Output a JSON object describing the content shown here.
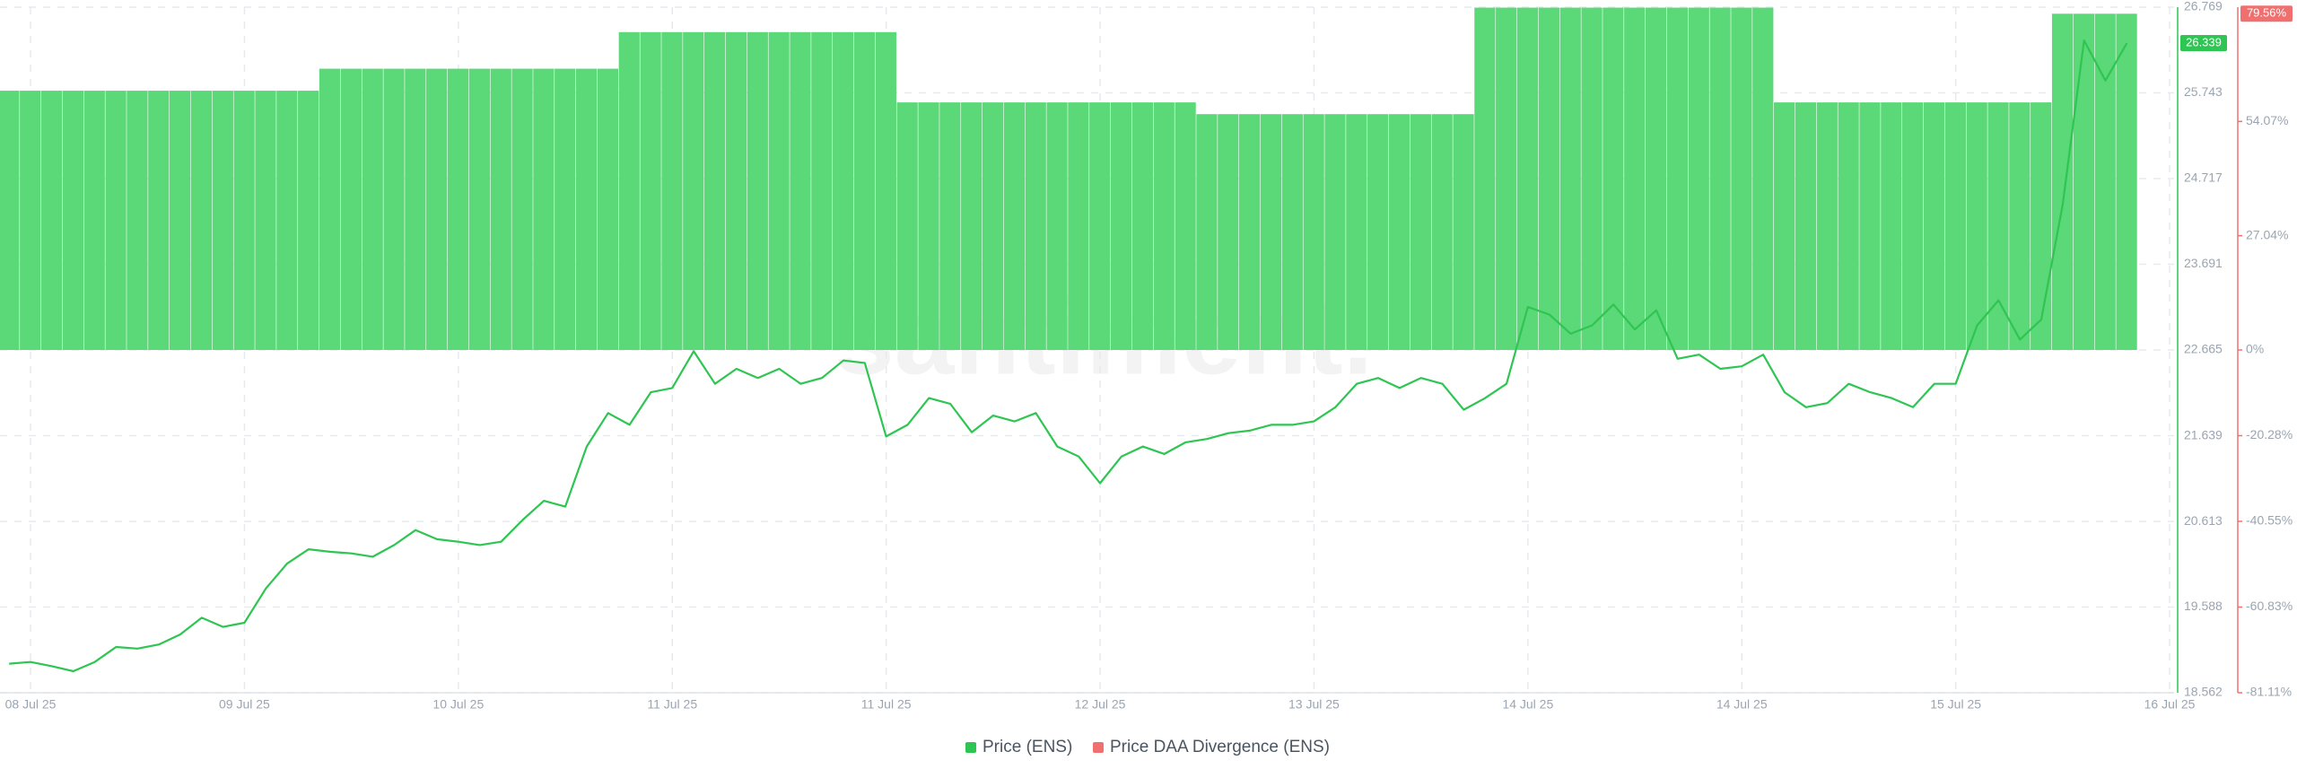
{
  "chart_data": {
    "type": "line",
    "watermark": "santiment.",
    "categories": [
      null,
      "08 Jul 25",
      null,
      null,
      null,
      null,
      null,
      null,
      null,
      null,
      null,
      "09 Jul 25",
      null,
      null,
      null,
      null,
      null,
      null,
      null,
      null,
      null,
      "10 Jul 25",
      null,
      null,
      null,
      null,
      null,
      null,
      null,
      null,
      null,
      "11 Jul 25",
      null,
      null,
      null,
      null,
      null,
      null,
      null,
      null,
      null,
      "11 Jul 25",
      null,
      null,
      null,
      null,
      null,
      null,
      null,
      null,
      null,
      "12 Jul 25",
      null,
      null,
      null,
      null,
      null,
      null,
      null,
      null,
      null,
      "13 Jul 25",
      null,
      null,
      null,
      null,
      null,
      null,
      null,
      null,
      null,
      "14 Jul 25",
      null,
      null,
      null,
      null,
      null,
      null,
      null,
      null,
      null,
      "14 Jul 25",
      null,
      null,
      null,
      null,
      null,
      null,
      null,
      null,
      null,
      "15 Jul 25",
      null,
      null,
      null,
      null,
      null,
      null,
      null,
      null,
      null,
      "16 Jul 25"
    ],
    "series": [
      {
        "name": "Price (ENS)",
        "color": "#2fc552",
        "type": "line",
        "axis": "y",
        "values": [
          18.91,
          18.93,
          18.88,
          18.82,
          18.93,
          19.11,
          19.09,
          19.14,
          19.26,
          19.46,
          19.35,
          19.4,
          19.81,
          20.11,
          20.28,
          20.25,
          20.23,
          20.19,
          20.33,
          20.51,
          20.4,
          20.37,
          20.33,
          20.37,
          20.63,
          20.86,
          20.79,
          21.51,
          21.91,
          21.77,
          22.16,
          22.21,
          22.65,
          22.26,
          22.44,
          22.33,
          22.44,
          22.26,
          22.33,
          22.54,
          22.51,
          21.63,
          21.77,
          22.09,
          22.02,
          21.68,
          21.88,
          21.81,
          21.91,
          21.51,
          21.39,
          21.07,
          21.39,
          21.51,
          21.42,
          21.56,
          21.6,
          21.67,
          21.7,
          21.77,
          21.77,
          21.81,
          21.98,
          22.26,
          22.33,
          22.21,
          22.33,
          22.26,
          21.95,
          22.09,
          22.26,
          23.18,
          23.09,
          22.86,
          22.96,
          23.21,
          22.91,
          23.14,
          22.56,
          22.61,
          22.44,
          22.47,
          22.61,
          22.16,
          21.98,
          22.03,
          22.26,
          22.16,
          22.09,
          21.98,
          22.26,
          22.26,
          22.96,
          23.26,
          22.79,
          23.03,
          24.4,
          26.37,
          25.89,
          26.339,
          null,
          null
        ]
      },
      {
        "name": "Price DAA Divergence (ENS)",
        "color": "#f07070",
        "bar_color": "#5bd877",
        "type": "bar",
        "axis": "y2",
        "values": [
          61.35,
          61.35,
          61.35,
          61.35,
          61.35,
          61.35,
          61.35,
          61.35,
          61.35,
          61.35,
          61.35,
          61.35,
          61.35,
          61.35,
          61.35,
          66.55,
          66.55,
          66.55,
          66.55,
          66.55,
          66.55,
          66.55,
          66.55,
          66.55,
          66.55,
          66.55,
          66.55,
          66.55,
          66.55,
          75.21,
          75.21,
          75.21,
          75.21,
          75.21,
          75.21,
          75.21,
          75.21,
          75.21,
          75.21,
          75.21,
          75.21,
          75.21,
          58.58,
          58.58,
          58.58,
          58.58,
          58.58,
          58.58,
          58.58,
          58.58,
          58.58,
          58.58,
          58.58,
          58.58,
          58.58,
          58.58,
          55.8,
          55.8,
          55.8,
          55.8,
          55.8,
          55.8,
          55.8,
          55.8,
          55.8,
          55.8,
          55.8,
          55.8,
          55.8,
          81.0,
          81.0,
          81.0,
          81.0,
          81.0,
          81.0,
          81.0,
          81.0,
          81.0,
          81.0,
          81.0,
          81.0,
          81.0,
          81.0,
          58.58,
          58.58,
          58.58,
          58.58,
          58.58,
          58.58,
          58.58,
          58.58,
          58.58,
          58.58,
          58.58,
          58.58,
          58.58,
          79.56,
          79.56,
          79.56,
          79.56,
          null,
          null
        ],
        "value_labels": [
          null,
          null,
          null,
          null,
          null,
          null,
          null,
          null,
          null,
          null,
          null,
          null,
          null,
          null,
          null,
          null,
          null,
          null,
          null,
          null,
          null,
          null,
          null,
          null,
          null,
          null,
          null,
          null,
          null,
          null,
          null,
          null,
          null,
          null,
          null,
          null,
          null,
          null,
          null,
          null,
          null,
          null,
          null,
          null,
          null,
          null,
          null,
          null,
          null,
          null,
          null,
          null,
          null,
          null,
          null,
          null,
          null,
          null,
          null,
          null,
          null,
          null,
          null,
          null,
          null,
          null,
          null,
          null,
          null,
          null,
          null,
          null,
          null,
          null,
          null,
          null,
          null,
          null,
          null,
          null,
          null,
          null,
          null,
          null,
          null,
          null,
          null,
          null,
          null,
          null,
          null,
          null,
          null,
          null,
          null,
          null,
          null,
          null,
          null,
          "79.56%",
          null,
          null
        ]
      }
    ],
    "ylim": [
      18.562,
      26.769
    ],
    "yticks": [
      18.562,
      19.588,
      20.613,
      21.639,
      22.665,
      23.691,
      24.717,
      25.743,
      26.769
    ],
    "y2lim": [
      -81.11,
      81.11
    ],
    "y2ticks": [
      {
        "value": -81.11,
        "label": "-81.11%"
      },
      {
        "value": -60.83,
        "label": "-60.83%"
      },
      {
        "value": -40.55,
        "label": "-40.55%"
      },
      {
        "value": -20.28,
        "label": "-20.28%"
      },
      {
        "value": 0,
        "label": "0%"
      },
      {
        "value": 27.04,
        "label": "27.04%"
      },
      {
        "value": 54.07,
        "label": "54.07%"
      }
    ],
    "grid": true,
    "legend": "bottom"
  }
}
